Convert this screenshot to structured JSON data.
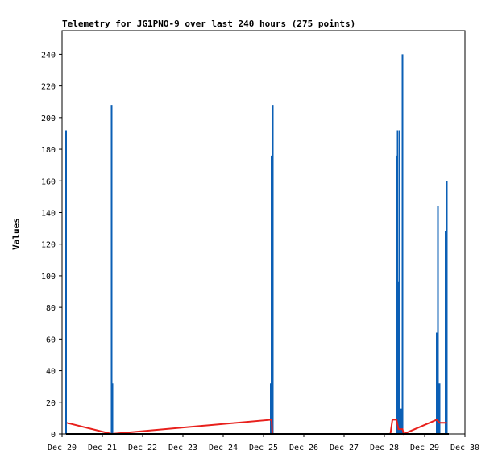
{
  "chart_data": {
    "type": "line",
    "title": "Telemetry for JG1PNO-9 over last 240 hours (275 points)",
    "xlabel": "",
    "ylabel": "Values",
    "x_range_days": [
      20,
      30
    ],
    "ylim": [
      0,
      255
    ],
    "x_ticks": [
      {
        "day": 20,
        "label": "Dec 20"
      },
      {
        "day": 21,
        "label": "Dec 21"
      },
      {
        "day": 22,
        "label": "Dec 22"
      },
      {
        "day": 23,
        "label": "Dec 23"
      },
      {
        "day": 24,
        "label": "Dec 24"
      },
      {
        "day": 25,
        "label": "Dec 25"
      },
      {
        "day": 26,
        "label": "Dec 26"
      },
      {
        "day": 27,
        "label": "Dec 27"
      },
      {
        "day": 28,
        "label": "Dec 28"
      },
      {
        "day": 29,
        "label": "Dec 29"
      },
      {
        "day": 30,
        "label": "Dec 30"
      }
    ],
    "y_ticks": [
      0,
      20,
      40,
      60,
      80,
      100,
      120,
      140,
      160,
      180,
      200,
      220,
      240
    ],
    "grid": false,
    "legend": "none",
    "series": [
      {
        "color": "#0b5fb5",
        "style": "spikes",
        "points": [
          {
            "x": 20.1,
            "y": 192
          },
          {
            "x": 21.23,
            "y": 208
          },
          {
            "x": 21.25,
            "y": 32
          },
          {
            "x": 25.18,
            "y": 32
          },
          {
            "x": 25.2,
            "y": 176
          },
          {
            "x": 25.23,
            "y": 208
          },
          {
            "x": 28.3,
            "y": 176
          },
          {
            "x": 28.33,
            "y": 192
          },
          {
            "x": 28.35,
            "y": 96
          },
          {
            "x": 28.38,
            "y": 192
          },
          {
            "x": 28.42,
            "y": 16
          },
          {
            "x": 28.45,
            "y": 240
          },
          {
            "x": 29.3,
            "y": 64
          },
          {
            "x": 29.33,
            "y": 144
          },
          {
            "x": 29.37,
            "y": 32
          },
          {
            "x": 29.52,
            "y": 128
          },
          {
            "x": 29.55,
            "y": 160
          }
        ]
      },
      {
        "color": "#e8201c",
        "style": "line",
        "points": [
          {
            "x": 20.12,
            "y": 7
          },
          {
            "x": 21.23,
            "y": 0
          },
          {
            "x": 25.2,
            "y": 9
          },
          {
            "x": 25.22,
            "y": 0
          },
          {
            "x": 28.15,
            "y": 0
          },
          {
            "x": 28.2,
            "y": 9
          },
          {
            "x": 28.3,
            "y": 9
          },
          {
            "x": 28.35,
            "y": 3
          },
          {
            "x": 28.45,
            "y": 3
          },
          {
            "x": 28.48,
            "y": 0
          },
          {
            "x": 29.3,
            "y": 9
          },
          {
            "x": 29.37,
            "y": 7
          },
          {
            "x": 29.55,
            "y": 7
          }
        ]
      },
      {
        "color": "#000000",
        "style": "line",
        "points": [
          {
            "x": 20.1,
            "y": 0
          },
          {
            "x": 29.6,
            "y": 0
          }
        ]
      }
    ]
  }
}
